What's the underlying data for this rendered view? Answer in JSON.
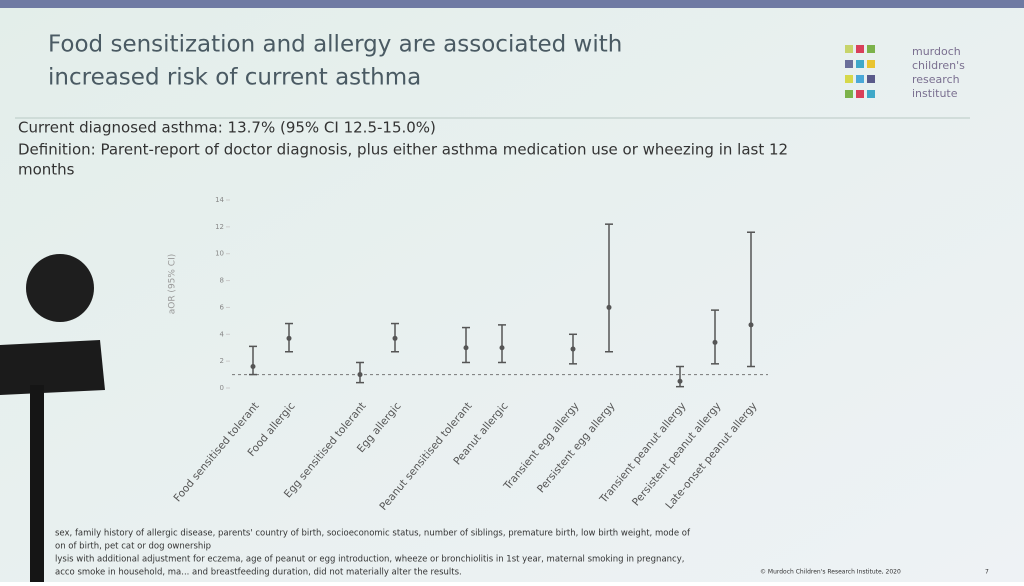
{
  "slide": {
    "title_lines": [
      "Food sensitization and allergy are associated with",
      "increased risk of current asthma"
    ],
    "logo_lines": [
      "murdoch",
      "children's",
      "research",
      "institute"
    ],
    "info_lines": [
      "Current diagnosed asthma: 13.7% (95% CI 12.5-15.0%)",
      "Definition: Parent-report of doctor diagnosis, plus either asthma medication use or wheezing in last 12",
      "months"
    ],
    "footnotes": [
      "sex, family history of allergic disease, parents' country of birth, socioeconomic status, number of siblings, premature birth, low birth weight, mode of",
      "on of birth, pet cat or dog ownership",
      "lysis with additional adjustment for eczema, age of peanut or egg introduction, wheeze or bronchiolitis in 1st year, maternal smoking in pregnancy,",
      "acco smoke in household, ma... and breastfeeding duration, did not materially alter the results."
    ],
    "credit": "© Murdoch Children's Research Institute, 2020",
    "page_number": "7"
  },
  "chart_data": {
    "type": "errorbar",
    "y_label": "aOR (95% CI)",
    "categories": [
      "Food sensitised tolerant",
      "Food allergic",
      "Egg sensitised tolerant",
      "Egg allergic",
      "Peanut sensitised tolerant",
      "Peanut allergic",
      "Transient egg allergy",
      "Persistent egg allergy",
      "Transient peanut allergy",
      "Persistent peanut allergy",
      "Late-onset peanut allergy"
    ],
    "values": [
      1.6,
      3.7,
      1.0,
      3.7,
      3.0,
      3.0,
      2.9,
      6.0,
      0.5,
      3.4,
      4.7
    ],
    "lower": [
      1.0,
      2.7,
      0.4,
      2.7,
      1.9,
      1.9,
      1.8,
      2.7,
      0.1,
      1.8,
      1.6
    ],
    "upper": [
      3.1,
      4.8,
      1.9,
      4.8,
      4.5,
      4.7,
      4.0,
      12.2,
      1.6,
      5.8,
      11.6
    ],
    "color": "#555555",
    "ylim": [
      0,
      14
    ],
    "yticks": [
      0,
      2,
      4,
      6,
      8,
      10,
      12,
      14
    ],
    "reference_line": 1
  }
}
